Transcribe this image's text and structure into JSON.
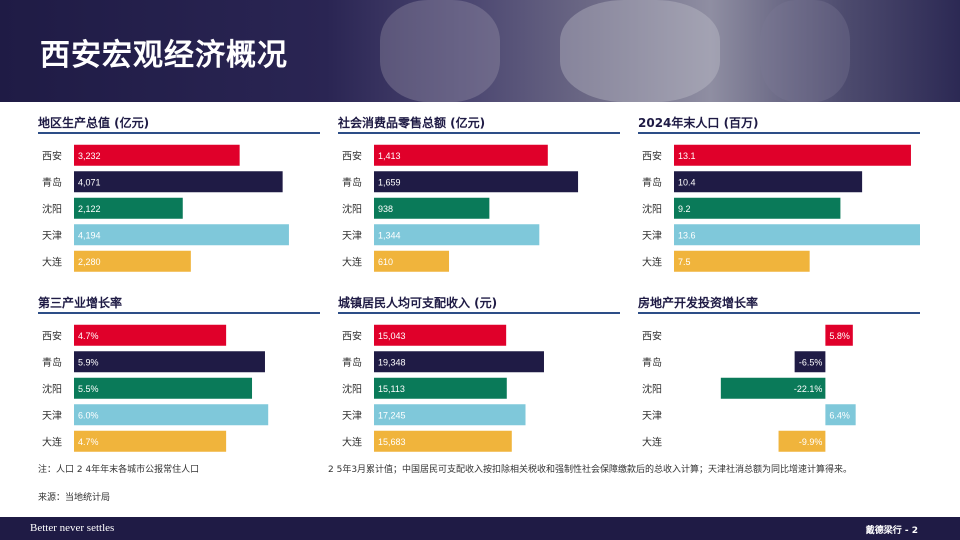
{
  "header": {
    "title": "西安宏观经济概况"
  },
  "colors": [
    "#e0002a",
    "#1f1b45",
    "#0a7a59",
    "#7fc8da",
    "#f0b43c"
  ],
  "chart_data": [
    {
      "type": "bar",
      "title": "地区生产总值 (亿元)",
      "categories": [
        "西安",
        "青岛",
        "沈阳",
        "天津",
        "大连"
      ],
      "values": [
        3232,
        4071,
        2122,
        4194,
        2280
      ],
      "labels": [
        "3,232",
        "4,071",
        "2,122",
        "4,194",
        "2,280"
      ],
      "xlim": [
        0,
        4800
      ]
    },
    {
      "type": "bar",
      "title": "社会消费品零售总额 (亿元)",
      "categories": [
        "西安",
        "青岛",
        "沈阳",
        "天津",
        "大连"
      ],
      "values": [
        1413,
        1659,
        938,
        1344,
        610
      ],
      "labels": [
        "1,413",
        "1,659",
        "938",
        "1,344",
        "610"
      ],
      "xlim": [
        0,
        2000
      ]
    },
    {
      "type": "bar",
      "title": "2024年末人口 (百万)",
      "categories": [
        "西安",
        "青岛",
        "沈阳",
        "天津",
        "大连"
      ],
      "values": [
        13.1,
        10.4,
        9.2,
        13.6,
        7.5
      ],
      "labels": [
        "13.1",
        "10.4",
        "9.2",
        "13.6",
        "7.5"
      ],
      "xlim": [
        0,
        13.6
      ]
    },
    {
      "type": "bar",
      "title": "第三产业增长率",
      "categories": [
        "西安",
        "青岛",
        "沈阳",
        "天津",
        "大连"
      ],
      "values": [
        4.7,
        5.9,
        5.5,
        6.0,
        4.7
      ],
      "labels": [
        "4.7%",
        "5.9%",
        "5.5%",
        "6.0%",
        "4.7%"
      ],
      "xlim": [
        0,
        7.6
      ]
    },
    {
      "type": "bar",
      "title": "城镇居民人均可支配收入 (元)",
      "categories": [
        "西安",
        "青岛",
        "沈阳",
        "天津",
        "大连"
      ],
      "values": [
        15043,
        19348,
        15113,
        17245,
        15683
      ],
      "labels": [
        "15,043",
        "19,348",
        "15,113",
        "17,245",
        "15,683"
      ],
      "xlim": [
        0,
        28000
      ]
    },
    {
      "type": "bar",
      "title": "房地产开发投资增长率",
      "categories": [
        "西安",
        "青岛",
        "沈阳",
        "天津",
        "大连"
      ],
      "values": [
        5.8,
        -6.5,
        -22.1,
        6.4,
        -9.9
      ],
      "labels": [
        "5.8%",
        "-6.5%",
        "-22.1%",
        "6.4%",
        "-9.9%"
      ],
      "xlim": [
        -32,
        20
      ]
    }
  ],
  "notes": {
    "note_left": "注：人口 2 4年年末各城市公报常住人口",
    "note_right": "2 5年3月累计值；中国居民可支配收入按扣除相关税收和强制性社会保障缴款后的总收入计算；天津社消总额为同比增速计算得来。",
    "source": "来源：当地统计局"
  },
  "footer": {
    "tagline": "Better never settles",
    "brand": "戴德梁行 - 2"
  }
}
